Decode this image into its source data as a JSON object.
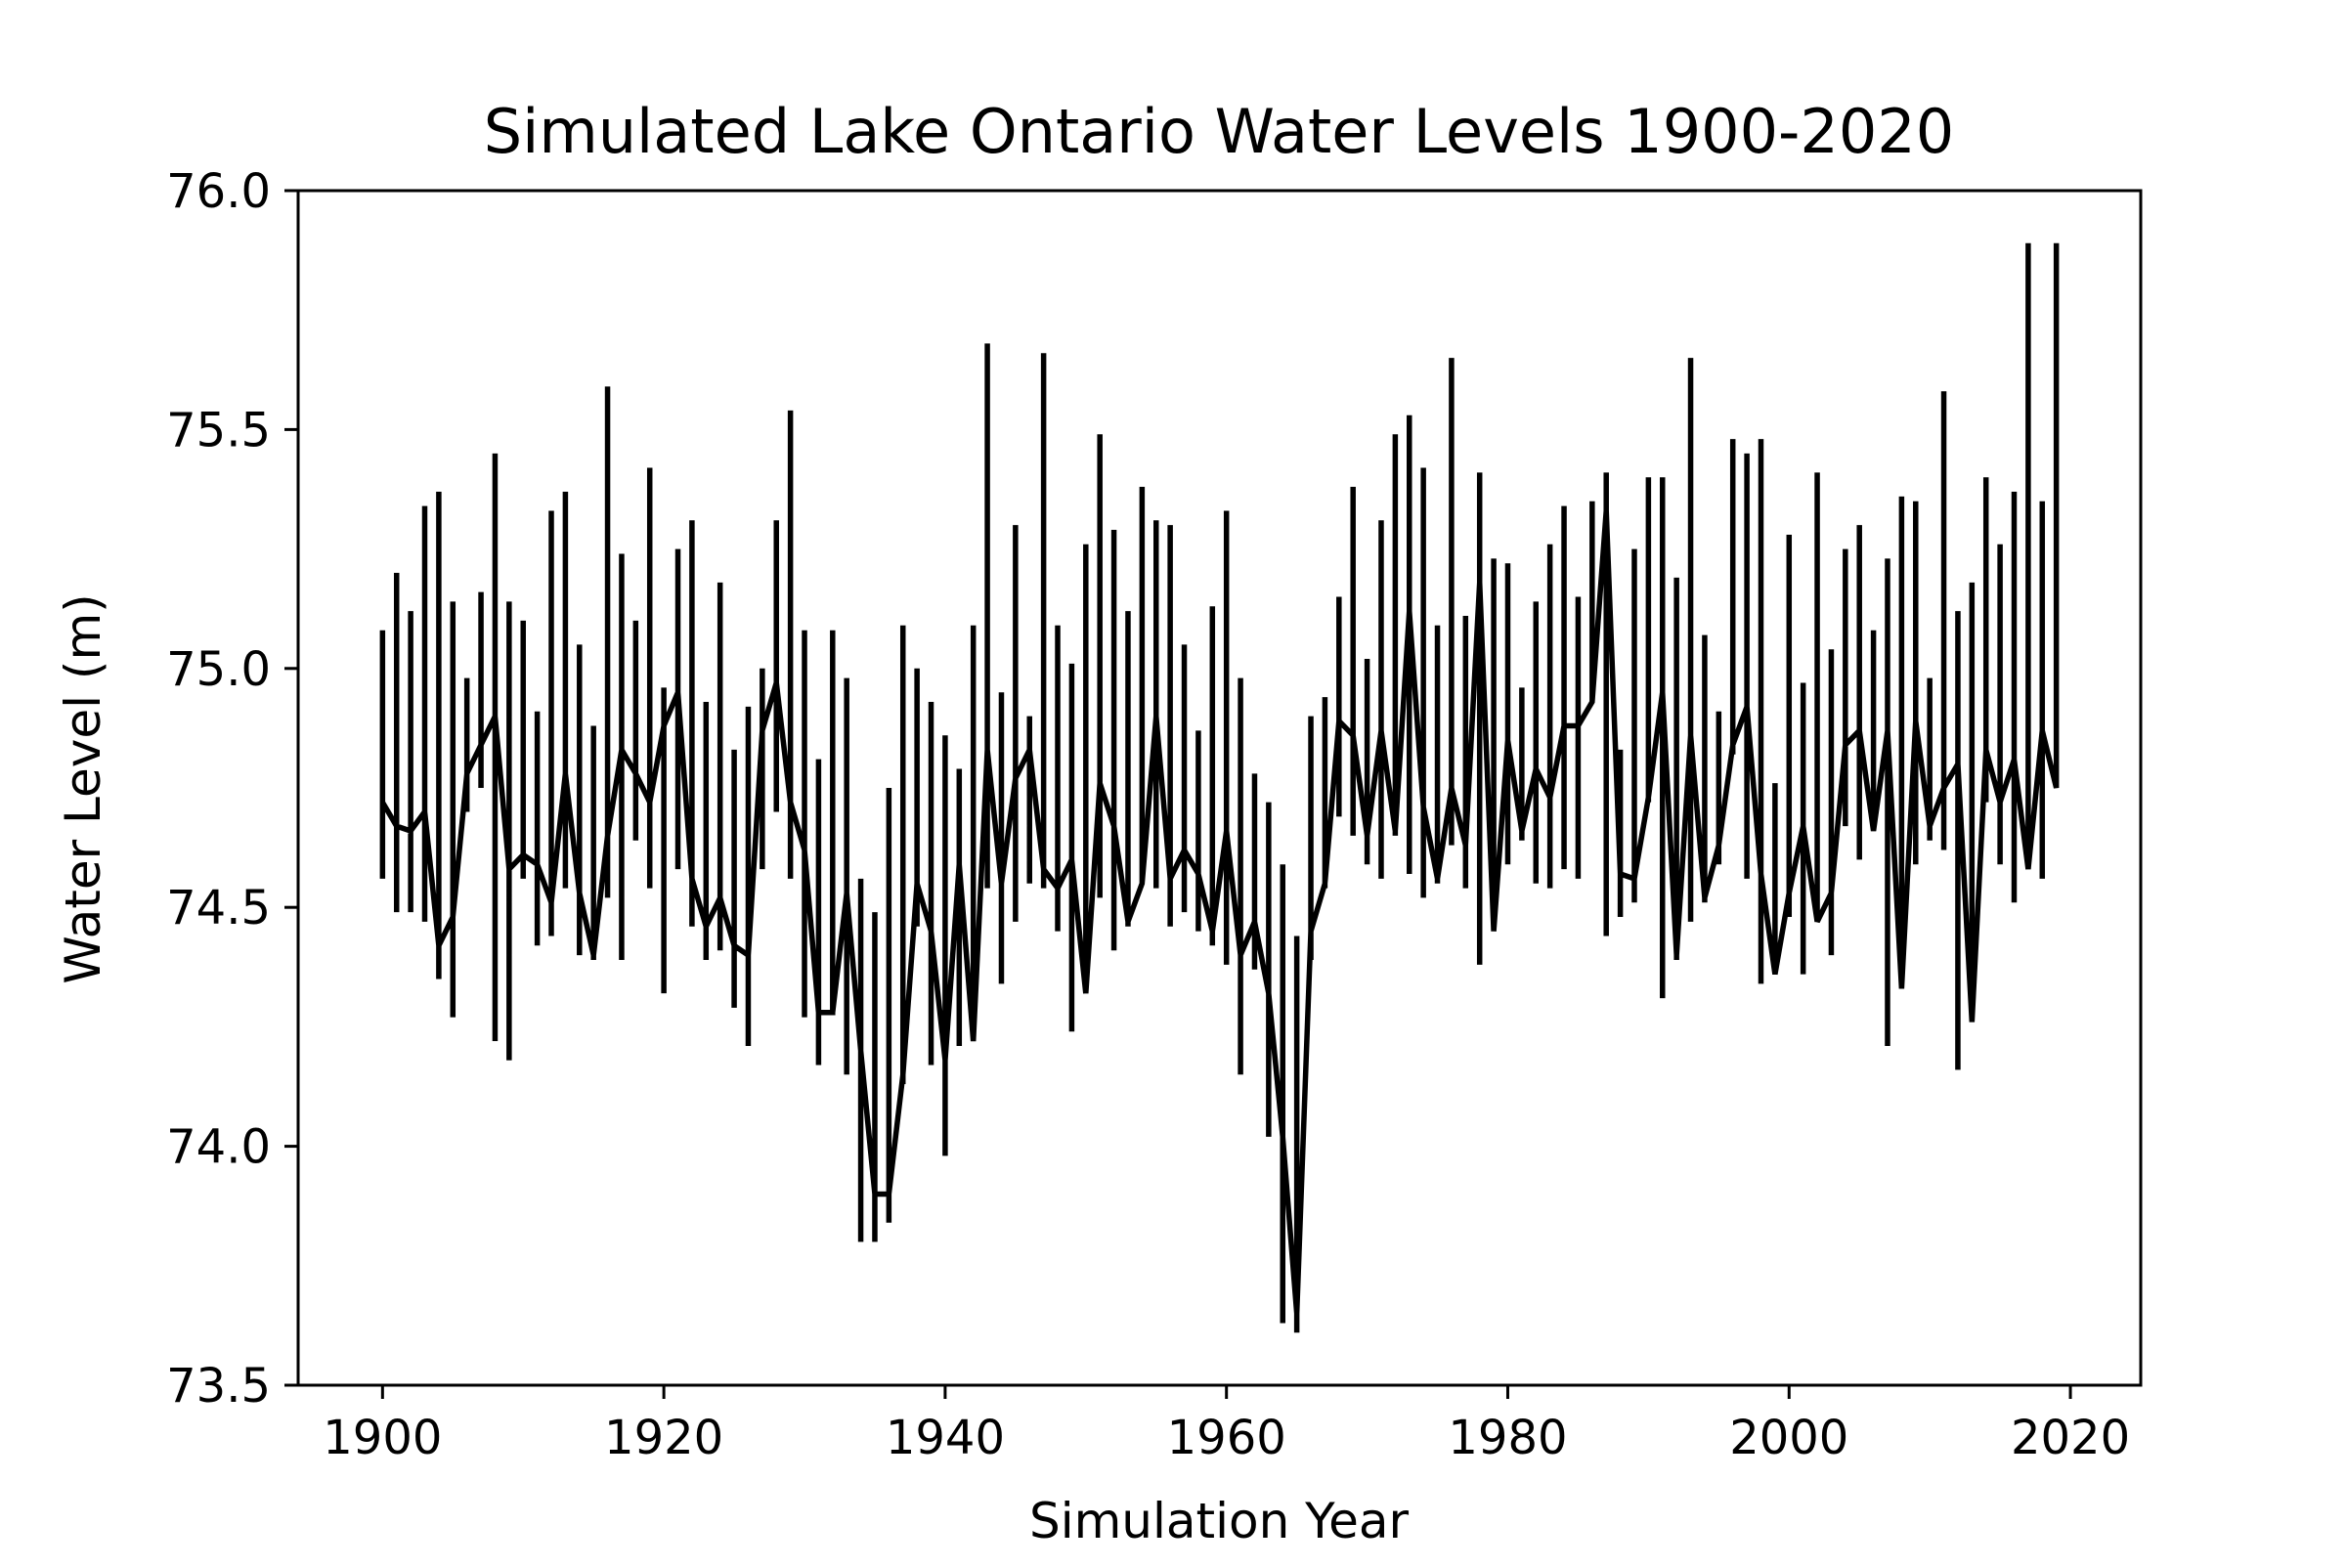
{
  "chart_data": {
    "type": "line",
    "title": "Simulated Lake Ontario Water Levels 1900-2020",
    "xlabel": "Simulation Year",
    "ylabel": "Water Level (m)",
    "xlim": [
      1894,
      2025
    ],
    "ylim": [
      73.5,
      76.0
    ],
    "x_ticks": [
      1900,
      1920,
      1940,
      1960,
      1980,
      2000,
      2020
    ],
    "x_tick_labels": [
      "1900",
      "1920",
      "1940",
      "1960",
      "1980",
      "2000",
      "2020"
    ],
    "y_ticks": [
      73.5,
      74.0,
      74.5,
      75.0,
      75.5,
      76.0
    ],
    "y_tick_labels": [
      "73.5",
      "74.0",
      "74.5",
      "75.0",
      "75.5",
      "76.0"
    ],
    "grid": false,
    "legend": "none",
    "colors": {
      "series": "#000000",
      "axes": "#000000",
      "background": "#ffffff"
    },
    "series": [
      {
        "style": "yearly vertical range with base level",
        "years": [
          1900,
          1901,
          1902,
          1903,
          1904,
          1905,
          1906,
          1907,
          1908,
          1909,
          1910,
          1911,
          1912,
          1913,
          1914,
          1915,
          1916,
          1917,
          1918,
          1919,
          1920,
          1921,
          1922,
          1923,
          1924,
          1925,
          1926,
          1927,
          1928,
          1929,
          1930,
          1931,
          1932,
          1933,
          1934,
          1935,
          1936,
          1937,
          1938,
          1939,
          1940,
          1941,
          1942,
          1943,
          1944,
          1945,
          1946,
          1947,
          1948,
          1949,
          1950,
          1951,
          1952,
          1953,
          1954,
          1955,
          1956,
          1957,
          1958,
          1959,
          1960,
          1961,
          1962,
          1963,
          1964,
          1965,
          1966,
          1967,
          1968,
          1969,
          1970,
          1971,
          1972,
          1973,
          1974,
          1975,
          1976,
          1977,
          1978,
          1979,
          1980,
          1981,
          1982,
          1983,
          1984,
          1985,
          1986,
          1987,
          1988,
          1989,
          1990,
          1991,
          1992,
          1993,
          1994,
          1995,
          1996,
          1997,
          1998,
          1999,
          2000,
          2001,
          2002,
          2003,
          2004,
          2005,
          2006,
          2007,
          2008,
          2009,
          2010,
          2011,
          2012,
          2013,
          2014,
          2015,
          2016,
          2017,
          2018,
          2019
        ],
        "high": [
          75.08,
          75.2,
          75.12,
          75.34,
          75.37,
          75.14,
          74.98,
          75.16,
          75.45,
          75.14,
          75.1,
          74.91,
          75.33,
          75.37,
          75.05,
          74.88,
          75.59,
          75.24,
          75.1,
          75.42,
          74.96,
          75.25,
          75.31,
          74.93,
          75.18,
          74.83,
          74.92,
          75.0,
          75.31,
          75.54,
          75.08,
          74.81,
          75.08,
          74.98,
          74.56,
          74.49,
          74.75,
          75.09,
          75.0,
          74.93,
          74.86,
          74.79,
          75.09,
          75.68,
          74.95,
          75.3,
          74.9,
          75.66,
          75.09,
          75.01,
          75.26,
          75.49,
          75.29,
          75.12,
          75.38,
          75.31,
          75.3,
          75.05,
          74.87,
          75.13,
          75.33,
          74.98,
          74.78,
          74.72,
          74.59,
          74.44,
          74.9,
          74.94,
          75.15,
          75.38,
          75.02,
          75.31,
          75.49,
          75.53,
          75.42,
          75.09,
          75.65,
          75.11,
          75.41,
          75.23,
          75.22,
          74.96,
          75.14,
          75.26,
          75.34,
          75.15,
          75.35,
          75.41,
          74.83,
          75.25,
          75.4,
          75.4,
          75.19,
          75.65,
          75.07,
          74.91,
          75.48,
          75.45,
          75.48,
          74.76,
          75.28,
          74.97,
          75.41,
          75.04,
          75.25,
          75.3,
          75.08,
          75.23,
          75.36,
          75.35,
          74.98,
          75.58,
          75.12,
          75.18,
          75.4,
          75.26,
          75.37,
          75.89,
          75.35,
          75.89
        ],
        "low": [
          74.56,
          74.49,
          74.49,
          74.47,
          74.35,
          74.27,
          74.7,
          74.75,
          74.22,
          74.18,
          74.56,
          74.42,
          74.44,
          74.54,
          74.4,
          74.39,
          74.52,
          74.39,
          74.64,
          74.54,
          74.32,
          74.58,
          74.46,
          74.39,
          74.41,
          74.29,
          74.21,
          74.58,
          74.7,
          74.56,
          74.27,
          74.17,
          74.34,
          74.15,
          73.8,
          73.8,
          73.84,
          74.13,
          74.46,
          74.17,
          73.98,
          74.21,
          74.22,
          74.54,
          74.34,
          74.47,
          74.55,
          74.54,
          74.45,
          74.24,
          74.4,
          74.52,
          74.41,
          74.46,
          74.55,
          74.54,
          74.46,
          74.49,
          74.45,
          74.42,
          74.38,
          74.15,
          74.37,
          74.02,
          73.63,
          73.61,
          74.39,
          74.54,
          74.69,
          74.65,
          74.59,
          74.56,
          74.65,
          74.57,
          74.52,
          74.55,
          74.63,
          74.54,
          74.38,
          74.5,
          74.59,
          74.64,
          74.55,
          74.54,
          74.58,
          74.56,
          74.93,
          74.44,
          74.48,
          74.51,
          74.72,
          74.31,
          74.39,
          74.47,
          74.51,
          74.59,
          74.82,
          74.56,
          74.34,
          74.36,
          74.48,
          74.36,
          74.48,
          74.4,
          74.67,
          74.6,
          74.74,
          74.21,
          74.35,
          74.59,
          74.64,
          74.62,
          74.16,
          74.26,
          74.72,
          74.59,
          74.51,
          74.64,
          74.56,
          74.78
        ],
        "base": [
          74.72,
          74.67,
          74.66,
          74.7,
          74.42,
          74.48,
          74.78,
          74.84,
          74.9,
          74.58,
          74.61,
          74.59,
          74.51,
          74.78,
          74.53,
          74.4,
          74.65,
          74.83,
          74.78,
          74.72,
          74.88,
          74.95,
          74.56,
          74.46,
          74.52,
          74.42,
          74.4,
          74.87,
          74.97,
          74.72,
          74.62,
          74.28,
          74.28,
          74.53,
          74.2,
          73.9,
          73.9,
          74.15,
          74.55,
          74.45,
          74.18,
          74.59,
          74.22,
          74.83,
          74.55,
          74.77,
          74.83,
          74.58,
          74.54,
          74.6,
          74.32,
          74.76,
          74.67,
          74.47,
          74.55,
          74.9,
          74.56,
          74.62,
          74.57,
          74.45,
          74.66,
          74.4,
          74.47,
          74.32,
          74.02,
          73.65,
          74.45,
          74.55,
          74.89,
          74.86,
          74.65,
          74.87,
          74.66,
          75.12,
          74.71,
          74.56,
          74.75,
          74.63,
          75.18,
          74.45,
          74.85,
          74.66,
          74.79,
          74.73,
          74.88,
          74.88,
          74.93,
          75.33,
          74.57,
          74.56,
          74.73,
          74.95,
          74.4,
          74.86,
          74.52,
          74.63,
          74.84,
          74.92,
          74.57,
          74.36,
          74.53,
          74.67,
          74.47,
          74.53,
          74.84,
          74.87,
          74.66,
          74.87,
          74.33,
          74.89,
          74.67,
          74.75,
          74.8,
          74.26,
          74.83,
          74.72,
          74.81,
          74.58,
          74.87,
          74.75
        ]
      }
    ]
  }
}
